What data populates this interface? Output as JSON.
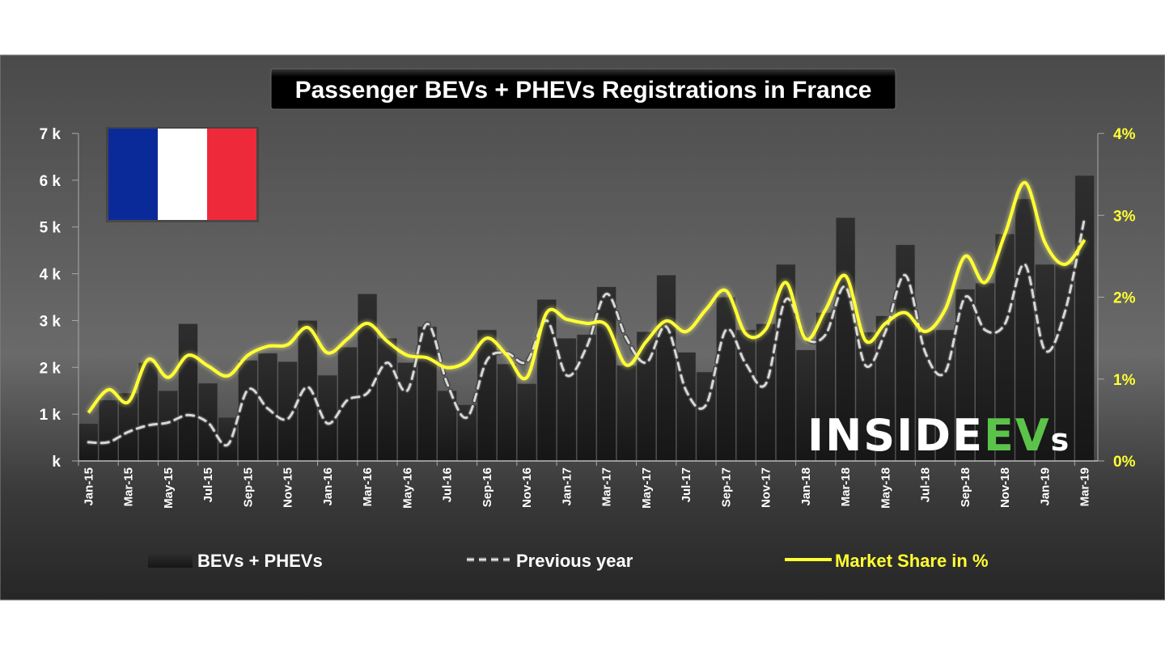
{
  "chart_data": {
    "type": "bar+line",
    "title": "Passenger BEVs + PHEVs Registrations in France",
    "categories": [
      "Jan-15",
      "Feb-15",
      "Mar-15",
      "Apr-15",
      "May-15",
      "Jun-15",
      "Jul-15",
      "Aug-15",
      "Sep-15",
      "Oct-15",
      "Nov-15",
      "Dec-15",
      "Jan-16",
      "Feb-16",
      "Mar-16",
      "Apr-16",
      "May-16",
      "Jun-16",
      "Jul-16",
      "Aug-16",
      "Sep-16",
      "Oct-16",
      "Nov-16",
      "Dec-16",
      "Jan-17",
      "Feb-17",
      "Mar-17",
      "Apr-17",
      "May-17",
      "Jun-17",
      "Jul-17",
      "Aug-17",
      "Sep-17",
      "Oct-17",
      "Nov-17",
      "Dec-17",
      "Jan-18",
      "Feb-18",
      "Mar-18",
      "Apr-18",
      "May-18",
      "Jun-18",
      "Jul-18",
      "Aug-18",
      "Sep-18",
      "Oct-18",
      "Nov-18",
      "Dec-18",
      "Jan-19",
      "Feb-19",
      "Mar-19"
    ],
    "x_tick_labels": [
      "Jan-15",
      "Mar-15",
      "May-15",
      "Jul-15",
      "Sep-15",
      "Nov-15",
      "Jan-16",
      "Mar-16",
      "May-16",
      "Jul-16",
      "Sep-16",
      "Nov-16",
      "Jan-17",
      "Mar-17",
      "May-17",
      "Jul-17",
      "Sep-17",
      "Nov-17",
      "Jan-18",
      "Mar-18",
      "May-18",
      "Jul-18",
      "Sep-18",
      "Nov-18",
      "Jan-19",
      "Mar-19"
    ],
    "y_left": {
      "ylim": [
        0,
        7000
      ],
      "tick_labels": [
        "k",
        "1 k",
        "2 k",
        "3 k",
        "4 k",
        "5 k",
        "6 k",
        "7 k"
      ]
    },
    "y_right": {
      "ylim": [
        0,
        4
      ],
      "unit": "%",
      "tick_labels": [
        "0%",
        "1%",
        "2%",
        "3%",
        "4%"
      ]
    },
    "series": [
      {
        "name": "BEVs + PHEVs",
        "type": "bar",
        "axis": "left",
        "color": "#1e1e1e",
        "values": [
          800,
          1300,
          1450,
          2100,
          1500,
          2930,
          1660,
          930,
          2150,
          2300,
          2120,
          3000,
          1830,
          2430,
          3570,
          2620,
          2100,
          2870,
          1500,
          1200,
          2800,
          2070,
          1650,
          3450,
          2620,
          2700,
          3720,
          2040,
          2760,
          3970,
          2320,
          1900,
          3500,
          2800,
          2930,
          4200,
          2370,
          3170,
          5200,
          2750,
          3100,
          4620,
          2800,
          2800,
          3670,
          3800,
          4850,
          5600,
          4200,
          4200,
          6100
        ]
      },
      {
        "name": "Previous year",
        "type": "line",
        "style": "dashed",
        "axis": "left",
        "color": "#d8d8d8",
        "values": [
          400,
          400,
          620,
          760,
          820,
          980,
          820,
          350,
          1520,
          1120,
          900,
          1580,
          800,
          1300,
          1450,
          2100,
          1500,
          2930,
          1660,
          930,
          2150,
          2300,
          2120,
          3000,
          1830,
          2430,
          3570,
          2620,
          2100,
          2870,
          1500,
          1200,
          2800,
          2070,
          1650,
          3450,
          2620,
          2700,
          3720,
          2040,
          2760,
          3970,
          2320,
          1900,
          3500,
          2800,
          2930,
          4200,
          2370,
          3170,
          5200
        ]
      },
      {
        "name": "Market Share in %",
        "type": "line",
        "axis": "right",
        "color": "#ffff33",
        "values": [
          0.59,
          0.87,
          0.72,
          1.24,
          1.02,
          1.29,
          1.16,
          1.04,
          1.29,
          1.4,
          1.42,
          1.63,
          1.32,
          1.49,
          1.68,
          1.46,
          1.29,
          1.26,
          1.14,
          1.22,
          1.5,
          1.29,
          1.02,
          1.81,
          1.73,
          1.68,
          1.66,
          1.17,
          1.46,
          1.71,
          1.58,
          1.85,
          2.08,
          1.55,
          1.61,
          2.18,
          1.49,
          1.85,
          2.26,
          1.47,
          1.68,
          1.81,
          1.58,
          1.85,
          2.5,
          2.18,
          2.77,
          3.4,
          2.67,
          2.4,
          2.7
        ]
      }
    ],
    "legend": {
      "placement": "bottom",
      "items": [
        "BEVs + PHEVs",
        "Previous year",
        "Market Share in %"
      ]
    },
    "grid": false
  },
  "flag": {
    "country": "France",
    "colors": [
      "#0b2a9a",
      "#ffffff",
      "#ee2a3a"
    ]
  },
  "logo": {
    "part1": "INSIDE",
    "part2": "EV",
    "part3": "s",
    "accent": "#5cc34a"
  }
}
